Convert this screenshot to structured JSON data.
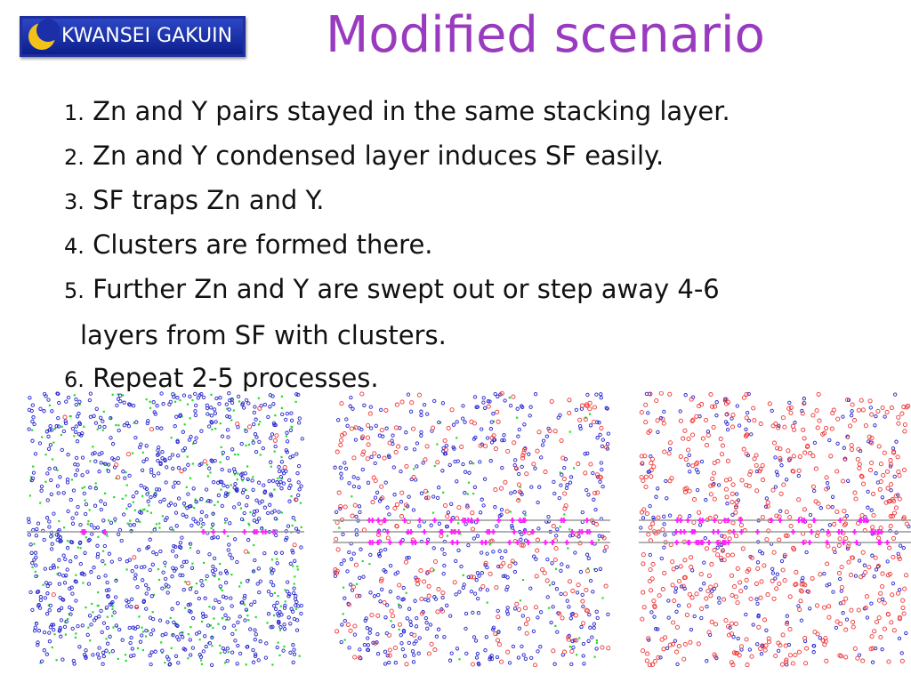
{
  "logo": {
    "text": "KWANSEI GAKUIN"
  },
  "title": "Modified scenario",
  "items": [
    {
      "num": "1.",
      "text": " Zn and Y pairs stayed in the same stacking layer."
    },
    {
      "num": "2.",
      "text": " Zn and Y condensed layer induces SF easily."
    },
    {
      "num": "3.",
      "text": " SF traps Zn and Y."
    },
    {
      "num": "4.",
      "text": " Clusters are formed there."
    },
    {
      "num": "5.",
      "text": " Further Zn and Y are swept out or step away 4-6",
      "cont": "layers from SF with clusters."
    },
    {
      "num": "6.",
      "text": " Repeat 2-5 processes."
    }
  ],
  "colors": {
    "title": "#9a3bbf",
    "logo_bg": "#1d36b3",
    "blue_atom": "#2222cc",
    "red_atom": "#ee3333",
    "green_atom": "#22dd22",
    "magenta_atom": "#ff22ff",
    "sf_line": "#999999"
  },
  "panels": [
    {
      "name": "panel-initial",
      "atoms": [
        "blue",
        "green",
        "red"
      ],
      "cluster_lines": 1
    },
    {
      "name": "panel-intermediate",
      "atoms": [
        "red",
        "blue",
        "green"
      ],
      "cluster_lines": 2
    },
    {
      "name": "panel-final",
      "atoms": [
        "red",
        "blue"
      ],
      "cluster_lines": 3
    }
  ]
}
